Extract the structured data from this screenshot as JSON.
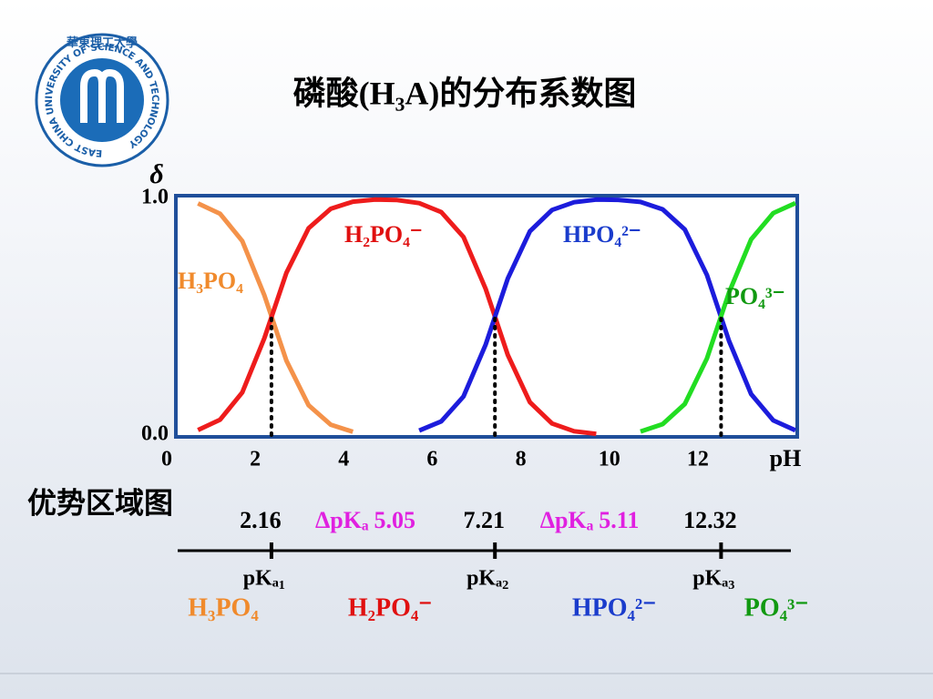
{
  "logo": {
    "cn": "華東理工大學",
    "en": "EAST CHINA UNIVERSITY OF SCIENCE AND TECHNOLOGY"
  },
  "chart_data": {
    "type": "line",
    "title": "磷酸(H₃A)的分布系数图",
    "y_label": "δ",
    "x_label": "pH",
    "x": [
      0,
      0.5,
      1,
      1.5,
      2,
      2.5,
      3,
      3.5,
      4,
      4.5,
      5,
      5.5,
      6,
      6.5,
      7,
      7.5,
      8,
      8.5,
      9,
      9.5,
      10,
      10.5,
      11,
      11.5,
      12,
      12.5,
      13,
      13.5,
      14
    ],
    "xlim": [
      0,
      14
    ],
    "xticks": [
      0,
      2,
      4,
      6,
      8,
      10,
      12
    ],
    "ylim": [
      0,
      1
    ],
    "yticks": [
      {
        "value": 0,
        "label": "0.0"
      },
      {
        "value": 1,
        "label": "1.0"
      }
    ],
    "series": [
      {
        "name": "H₃PO₄",
        "color": "#f4924a",
        "label_color": "#f08a2c",
        "values": [
          null,
          0.979,
          0.935,
          0.82,
          0.591,
          0.314,
          0.126,
          0.044,
          0.014,
          null,
          null,
          null,
          null,
          null,
          null,
          null,
          null,
          null,
          null,
          null,
          null,
          null,
          null,
          null,
          null,
          null,
          null,
          null,
          null
        ]
      },
      {
        "name": "H₂PO₄⁻",
        "color": "#ee1c1c",
        "label_color": "#e01010",
        "values": [
          null,
          0.021,
          0.065,
          0.18,
          0.409,
          0.686,
          0.874,
          0.956,
          0.986,
          0.995,
          0.993,
          0.98,
          0.942,
          0.837,
          0.618,
          0.339,
          0.139,
          0.049,
          0.016,
          0.005,
          null,
          null,
          null,
          null,
          null,
          null,
          null,
          null,
          null
        ]
      },
      {
        "name": "HPO₄²⁻",
        "color": "#1c1cdc",
        "label_color": "#1a3ccc",
        "values": [
          null,
          null,
          null,
          null,
          null,
          null,
          null,
          null,
          null,
          null,
          null,
          0.019,
          0.058,
          0.163,
          0.382,
          0.661,
          0.861,
          0.951,
          0.984,
          0.995,
          0.994,
          0.985,
          0.954,
          0.869,
          0.676,
          0.398,
          0.173,
          0.062,
          0.02
        ]
      },
      {
        "name": "PO₄³⁻",
        "color": "#22dd22",
        "label_color": "#119911",
        "values": [
          null,
          null,
          null,
          null,
          null,
          null,
          null,
          null,
          null,
          null,
          null,
          null,
          null,
          null,
          null,
          null,
          null,
          null,
          null,
          null,
          null,
          0.015,
          0.046,
          0.131,
          0.324,
          0.602,
          0.827,
          0.938,
          0.98
        ]
      }
    ],
    "pka_markers": {
      "x": [
        2.16,
        7.21,
        12.32
      ],
      "y": 0.5
    }
  },
  "dominance": {
    "title": "优势区域图",
    "pka": [
      {
        "value": 2.16,
        "label": "pKₐ₁"
      },
      {
        "value": 7.21,
        "label": "pKₐ₂"
      },
      {
        "value": 12.32,
        "label": "pKₐ₃"
      }
    ],
    "delta": [
      {
        "label": "ΔpKₐ",
        "value": 5.05
      },
      {
        "label": "ΔpKₐ",
        "value": 5.11
      }
    ]
  }
}
